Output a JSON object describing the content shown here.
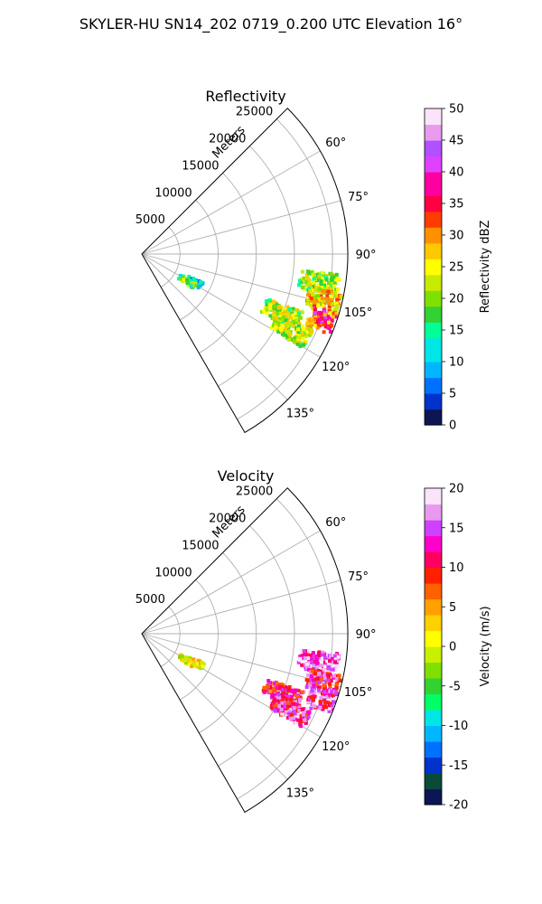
{
  "figure_title": "SKYLER-HU  SN14_202  0719_0.200 UTC Elevation 16°",
  "chart_data": [
    {
      "type": "heatmap",
      "projection": "polar-sector",
      "title": "Reflectivity",
      "range_label": "Meters",
      "range_ticks": [
        5000,
        10000,
        15000,
        20000,
        25000
      ],
      "range_max": 27000,
      "azimuth_range_deg": [
        45,
        150
      ],
      "azimuth_ticks_deg": [
        60,
        75,
        90,
        105,
        120,
        135
      ],
      "azimuth_tick_labels": [
        "60°",
        "75°",
        "90°",
        "105°",
        "120°",
        "135°"
      ],
      "grid": true,
      "colorbar": {
        "label": "Reflectivity dBZ",
        "min": 0,
        "max": 50,
        "ticks": [
          0,
          5,
          10,
          15,
          20,
          25,
          30,
          35,
          40,
          45,
          50
        ],
        "colormap": "pyart_NWSRef",
        "colors": [
          "#0d1654",
          "#0033cc",
          "#0070ff",
          "#00b7ff",
          "#00e6e6",
          "#00ff99",
          "#32d232",
          "#7fe000",
          "#c8ea00",
          "#ffff00",
          "#ffc800",
          "#ff9000",
          "#ff3c00",
          "#ff0040",
          "#ff00a0",
          "#e040ff",
          "#b050ff",
          "#e89aee",
          "#fbe4fb"
        ]
      },
      "echo_cells": [
        {
          "azimuth_deg": 118,
          "range_m": 8000,
          "value_dbz": 12
        },
        {
          "azimuth_deg": 121,
          "range_m": 7000,
          "value_dbz": 18
        },
        {
          "azimuth_deg": 99,
          "range_m": 23500,
          "value_dbz": 21
        },
        {
          "azimuth_deg": 104,
          "range_m": 25000,
          "value_dbz": 27
        },
        {
          "azimuth_deg": 110,
          "range_m": 26000,
          "value_dbz": 33
        },
        {
          "azimuth_deg": 113,
          "range_m": 20000,
          "value_dbz": 22
        },
        {
          "azimuth_deg": 117,
          "range_m": 22000,
          "value_dbz": 22
        }
      ]
    },
    {
      "type": "heatmap",
      "projection": "polar-sector",
      "title": "Velocity",
      "range_label": "Meters",
      "range_ticks": [
        5000,
        10000,
        15000,
        20000,
        25000
      ],
      "range_max": 27000,
      "azimuth_range_deg": [
        45,
        150
      ],
      "azimuth_ticks_deg": [
        60,
        75,
        90,
        105,
        120,
        135
      ],
      "azimuth_tick_labels": [
        "60°",
        "75°",
        "90°",
        "105°",
        "120°",
        "135°"
      ],
      "grid": true,
      "colorbar": {
        "label": "Velocity (m/s)",
        "min": -20,
        "max": 20,
        "ticks": [
          -20,
          -15,
          -10,
          -5,
          0,
          5,
          10,
          15,
          20
        ],
        "colormap": "pyart_BuDRd18",
        "colors": [
          "#0d1654",
          "#0a4a3a",
          "#0033cc",
          "#0070ff",
          "#00b7ff",
          "#00e6e6",
          "#00ff66",
          "#32d232",
          "#7fe000",
          "#c8f000",
          "#ffff00",
          "#ffd000",
          "#ffa000",
          "#ff6000",
          "#ff2000",
          "#ff0060",
          "#ff00c8",
          "#d040ff",
          "#e89aee",
          "#fbe4fb"
        ]
      },
      "echo_cells": [
        {
          "azimuth_deg": 118,
          "range_m": 8000,
          "value_ms": 2
        },
        {
          "azimuth_deg": 121,
          "range_m": 7000,
          "value_ms": 1
        },
        {
          "azimuth_deg": 99,
          "range_m": 23500,
          "value_ms": 16
        },
        {
          "azimuth_deg": 105,
          "range_m": 25000,
          "value_ms": 12
        },
        {
          "azimuth_deg": 110,
          "range_m": 26000,
          "value_ms": 14
        },
        {
          "azimuth_deg": 113,
          "range_m": 20000,
          "value_ms": 11
        },
        {
          "azimuth_deg": 117,
          "range_m": 22000,
          "value_ms": 13
        }
      ]
    }
  ]
}
